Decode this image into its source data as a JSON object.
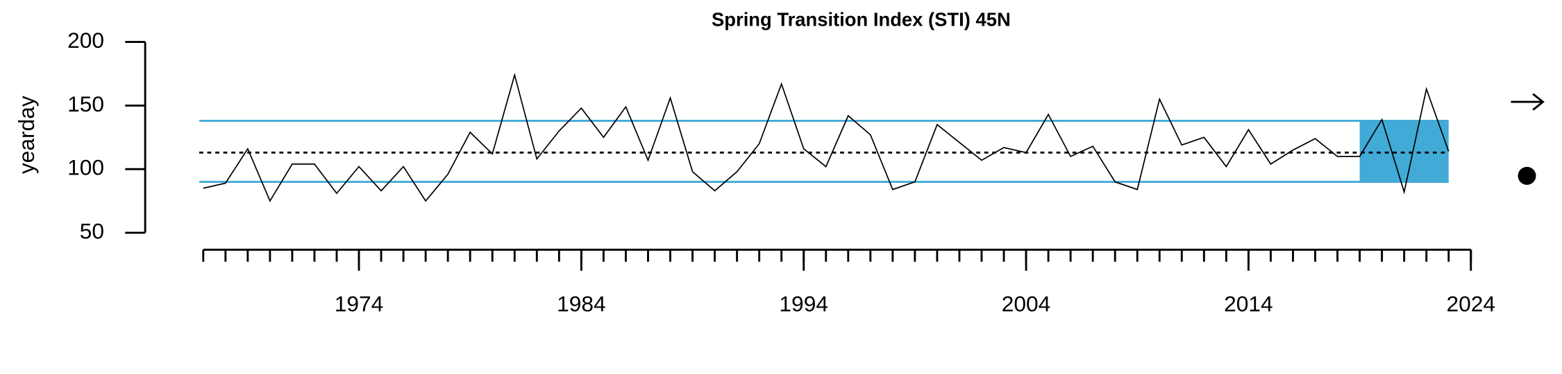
{
  "chart_data": {
    "type": "line",
    "title": "Spring Transition Index (STI) 45N",
    "y_label": "yearday",
    "x": [
      1967,
      1968,
      1969,
      1970,
      1971,
      1972,
      1973,
      1974,
      1975,
      1976,
      1977,
      1978,
      1979,
      1980,
      1981,
      1982,
      1983,
      1984,
      1985,
      1986,
      1987,
      1988,
      1989,
      1990,
      1991,
      1992,
      1993,
      1994,
      1995,
      1996,
      1997,
      1998,
      1999,
      2000,
      2001,
      2002,
      2003,
      2004,
      2005,
      2006,
      2007,
      2008,
      2009,
      2010,
      2011,
      2012,
      2013,
      2014,
      2015,
      2016,
      2017,
      2018,
      2019,
      2020,
      2021,
      2022,
      2023
    ],
    "series": [
      {
        "color": "#000000",
        "values": [
          85,
          89,
          116,
          75,
          104,
          104,
          81,
          102,
          83,
          102,
          75,
          96,
          129,
          112,
          174,
          108,
          130,
          148,
          125,
          149,
          107,
          156,
          98,
          83,
          98,
          120,
          167,
          116,
          102,
          142,
          127,
          84,
          90,
          135,
          121,
          107,
          117,
          113,
          143,
          110,
          118,
          90,
          84,
          155,
          119,
          125,
          102,
          131,
          104,
          115,
          124,
          110,
          110,
          139,
          82,
          163,
          114
        ]
      }
    ],
    "mean": 113,
    "upper_sd": 138,
    "lower_sd": 90,
    "reference_color": "#41aad6",
    "highlight_x": [
      2019,
      2023
    ],
    "xlim": [
      1967,
      2024
    ],
    "xticks": [
      1974,
      1984,
      1994,
      2004,
      2014,
      2024
    ],
    "xminorticks": [
      1967,
      1968,
      1969,
      1970,
      1971,
      1972,
      1973,
      1974,
      1975,
      1976,
      1977,
      1978,
      1979,
      1980,
      1981,
      1982,
      1983,
      1984,
      1985,
      1986,
      1987,
      1988,
      1989,
      1990,
      1991,
      1992,
      1993,
      1994,
      1995,
      1996,
      1997,
      1998,
      1999,
      2000,
      2001,
      2002,
      2003,
      2004,
      2005,
      2006,
      2007,
      2008,
      2009,
      2010,
      2011,
      2012,
      2013,
      2014,
      2015,
      2016,
      2017,
      2018,
      2019,
      2020,
      2021,
      2022,
      2023,
      2024
    ],
    "ylim": [
      50,
      200
    ],
    "yticks": [
      50,
      100,
      150,
      200
    ]
  }
}
